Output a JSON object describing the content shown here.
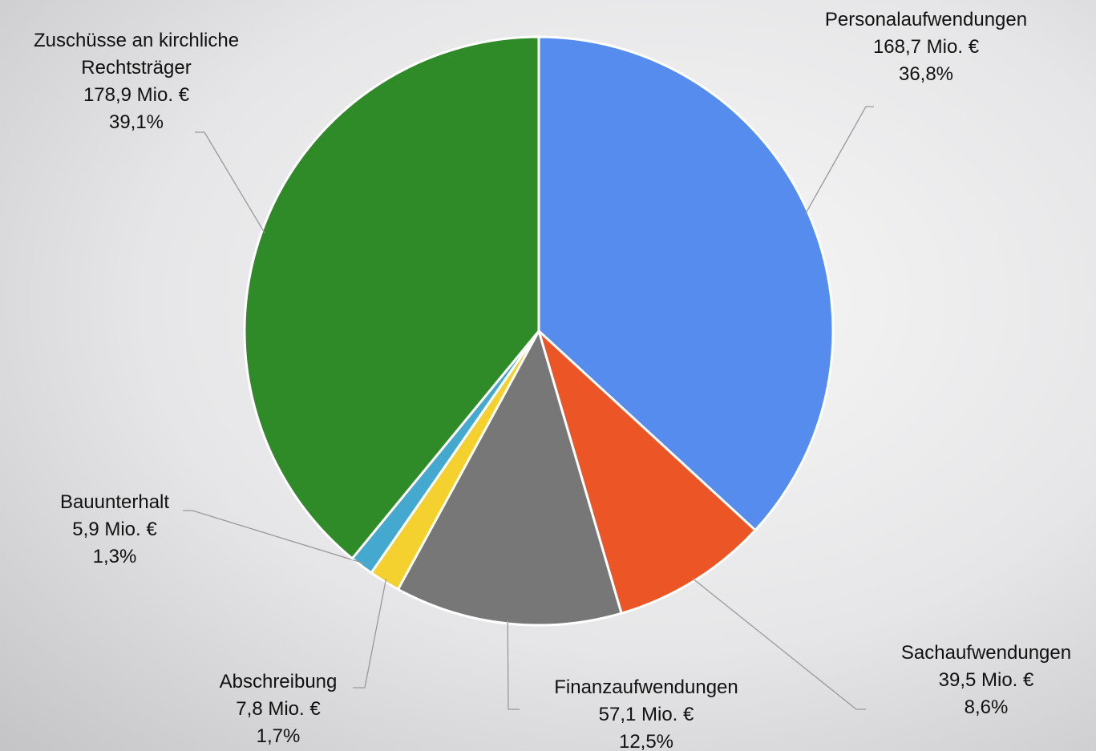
{
  "chart_data": {
    "type": "pie",
    "categories": [
      "Personalaufwendungen",
      "Sachaufwendungen",
      "Finanzaufwendungen",
      "Abschreibung",
      "Bauunterhalt",
      "Zuschüsse an kirchliche Rechtsträger"
    ],
    "values": [
      168.7,
      39.5,
      57.1,
      7.8,
      5.9,
      178.9
    ],
    "value_labels": [
      "168,7 Mio. €",
      "39,5 Mio. €",
      "57,1 Mio. €",
      "7,8 Mio. €",
      "5,9 Mio. €",
      "178,9 Mio. €"
    ],
    "percentages": [
      36.8,
      8.6,
      12.5,
      1.7,
      1.3,
      39.1
    ],
    "percentage_labels": [
      "36,8%",
      "8,6%",
      "12,5%",
      "1,7%",
      "1,3%",
      "39,1%"
    ],
    "colors": [
      "#568cee",
      "#ec5526",
      "#777777",
      "#f5d130",
      "#45a8cf",
      "#2f8a28"
    ]
  }
}
